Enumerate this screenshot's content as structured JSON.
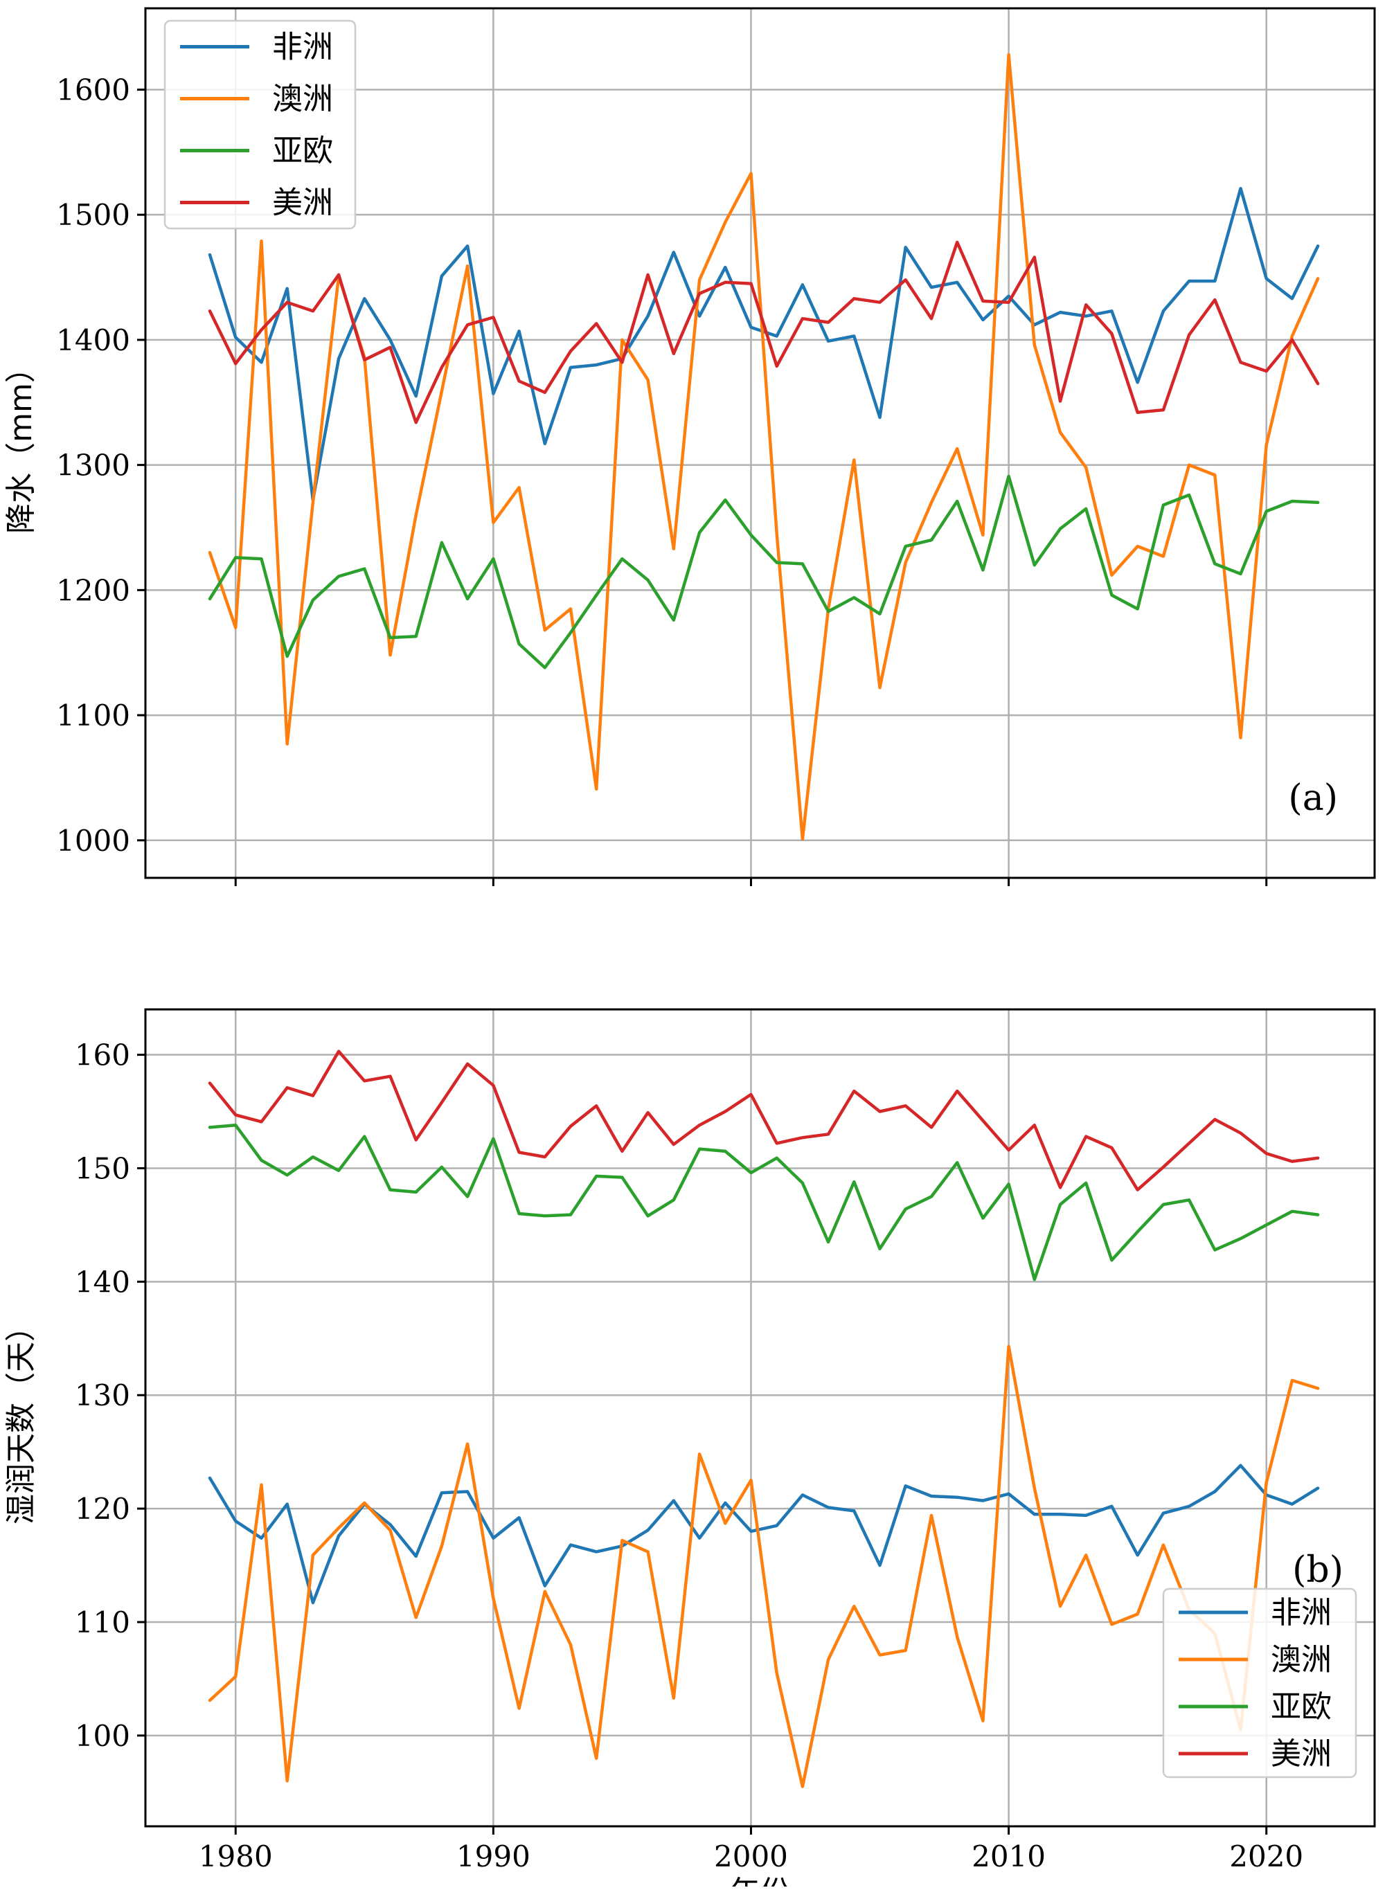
{
  "chart_data": [
    {
      "type": "line",
      "panel_label": "(a)",
      "ylabel": "降水（mm）",
      "xlabel": "",
      "xlim": [
        1976.5,
        2024.2
      ],
      "ylim": [
        970,
        1665
      ],
      "xticks": [
        1980,
        1990,
        2000,
        2010,
        2020
      ],
      "yticks": [
        1000,
        1100,
        1200,
        1300,
        1400,
        1500,
        1600
      ],
      "grid": true,
      "legend_position": "top-left",
      "x": [
        1979,
        1980,
        1981,
        1982,
        1983,
        1984,
        1985,
        1986,
        1987,
        1988,
        1989,
        1990,
        1991,
        1992,
        1993,
        1994,
        1995,
        1996,
        1997,
        1998,
        1999,
        2000,
        2001,
        2002,
        2003,
        2004,
        2005,
        2006,
        2007,
        2008,
        2009,
        2010,
        2011,
        2012,
        2013,
        2014,
        2015,
        2016,
        2017,
        2018,
        2019,
        2020,
        2021,
        2022
      ],
      "series": [
        {
          "name": "非洲",
          "color": "#1f77b4",
          "values": [
            1468,
            1402,
            1382,
            1441,
            1272,
            1385,
            1433,
            1400,
            1355,
            1451,
            1475,
            1357,
            1407,
            1317,
            1378,
            1380,
            1385,
            1419,
            1470,
            1419,
            1458,
            1410,
            1403,
            1444,
            1399,
            1403,
            1338,
            1474,
            1442,
            1446,
            1416,
            1435,
            1412,
            1422,
            1419,
            1423,
            1366,
            1423,
            1447,
            1447,
            1521,
            1449,
            1433,
            1475
          ]
        },
        {
          "name": "澳洲",
          "color": "#ff7f0e",
          "values": [
            1230,
            1170,
            1479,
            1077,
            1270,
            1451,
            1386,
            1148,
            1260,
            1359,
            1459,
            1254,
            1282,
            1168,
            1185,
            1041,
            1400,
            1368,
            1233,
            1448,
            1494,
            1533,
            1245,
            1001,
            1185,
            1304,
            1122,
            1222,
            1270,
            1313,
            1244,
            1628,
            1396,
            1326,
            1298,
            1212,
            1235,
            1227,
            1300,
            1292,
            1082,
            1316,
            1403,
            1449
          ]
        },
        {
          "name": "亚欧",
          "color": "#2ca02c",
          "values": [
            1193,
            1226,
            1225,
            1147,
            1192,
            1211,
            1217,
            1162,
            1163,
            1238,
            1193,
            1225,
            1157,
            1138,
            1166,
            1196,
            1225,
            1208,
            1176,
            1246,
            1272,
            1244,
            1222,
            1221,
            1183,
            1194,
            1181,
            1235,
            1240,
            1271,
            1216,
            1291,
            1220,
            1249,
            1265,
            1196,
            1185,
            1268,
            1276,
            1221,
            1213,
            1263,
            1271,
            1270
          ]
        },
        {
          "name": "美洲",
          "color": "#d62728",
          "values": [
            1423,
            1381,
            1408,
            1430,
            1423,
            1452,
            1384,
            1394,
            1334,
            1378,
            1412,
            1418,
            1367,
            1358,
            1391,
            1413,
            1382,
            1452,
            1389,
            1437,
            1446,
            1445,
            1379,
            1417,
            1414,
            1433,
            1430,
            1448,
            1417,
            1478,
            1431,
            1430,
            1466,
            1351,
            1428,
            1405,
            1342,
            1344,
            1404,
            1432,
            1382,
            1375,
            1400,
            1365
          ]
        }
      ]
    },
    {
      "type": "line",
      "panel_label": "(b)",
      "ylabel": "湿润天数（天）",
      "xlabel": "年份",
      "xlim": [
        1976.5,
        2024.2
      ],
      "ylim": [
        92,
        164
      ],
      "xticks": [
        1980,
        1990,
        2000,
        2010,
        2020
      ],
      "yticks": [
        100,
        110,
        120,
        130,
        140,
        150,
        160
      ],
      "grid": true,
      "legend_position": "bottom-right",
      "x": [
        1979,
        1980,
        1981,
        1982,
        1983,
        1984,
        1985,
        1986,
        1987,
        1988,
        1989,
        1990,
        1991,
        1992,
        1993,
        1994,
        1995,
        1996,
        1997,
        1998,
        1999,
        2000,
        2001,
        2002,
        2003,
        2004,
        2005,
        2006,
        2007,
        2008,
        2009,
        2010,
        2011,
        2012,
        2013,
        2014,
        2015,
        2016,
        2017,
        2018,
        2019,
        2020,
        2021,
        2022
      ],
      "series": [
        {
          "name": "非洲",
          "color": "#1f77b4",
          "values": [
            122.7,
            118.9,
            117.4,
            120.4,
            111.7,
            117.6,
            120.4,
            118.6,
            115.8,
            121.4,
            121.5,
            117.4,
            119.2,
            113.2,
            116.8,
            116.2,
            116.7,
            118.1,
            120.7,
            117.4,
            120.5,
            118.0,
            118.5,
            121.2,
            120.1,
            119.8,
            115.0,
            122.0,
            121.1,
            121.0,
            120.7,
            121.3,
            119.5,
            119.5,
            119.4,
            120.2,
            115.9,
            119.6,
            120.2,
            121.5,
            123.8,
            121.2,
            120.4,
            121.8
          ]
        },
        {
          "name": "澳洲",
          "color": "#ff7f0e",
          "values": [
            103.1,
            105.2,
            122.1,
            96.0,
            115.9,
            118.3,
            120.5,
            118.1,
            110.4,
            116.7,
            125.7,
            112.1,
            102.4,
            112.7,
            108.0,
            98.0,
            117.2,
            116.2,
            103.3,
            124.8,
            118.7,
            122.5,
            105.5,
            95.5,
            106.7,
            111.4,
            107.1,
            107.5,
            119.4,
            108.7,
            101.3,
            134.3,
            121.8,
            111.4,
            115.9,
            109.8,
            110.7,
            116.8,
            111.1,
            109.0,
            100.5,
            122.3,
            131.3,
            130.6
          ]
        },
        {
          "name": "亚欧",
          "color": "#2ca02c",
          "values": [
            153.6,
            153.8,
            150.7,
            149.4,
            151.0,
            149.8,
            152.8,
            148.1,
            147.9,
            150.1,
            147.5,
            152.6,
            146.0,
            145.8,
            145.9,
            149.3,
            149.2,
            145.8,
            147.2,
            151.7,
            151.5,
            149.6,
            150.9,
            148.7,
            143.5,
            148.8,
            142.9,
            146.4,
            147.5,
            150.5,
            145.6,
            148.6,
            140.2,
            146.8,
            148.7,
            141.9,
            144.4,
            146.8,
            147.2,
            142.8,
            143.8,
            145.0,
            146.2,
            145.9
          ]
        },
        {
          "name": "美洲",
          "color": "#d62728",
          "values": [
            157.5,
            154.7,
            154.1,
            157.1,
            156.4,
            160.3,
            157.7,
            158.1,
            152.5,
            155.8,
            159.2,
            157.3,
            151.4,
            151.0,
            153.7,
            155.5,
            151.5,
            154.9,
            152.1,
            153.8,
            155.0,
            156.5,
            152.2,
            152.7,
            153.0,
            156.8,
            155.0,
            155.5,
            153.6,
            156.8,
            154.2,
            151.6,
            153.8,
            148.3,
            152.8,
            151.8,
            148.1,
            150.1,
            152.2,
            154.3,
            153.1,
            151.3,
            150.6,
            150.9
          ]
        }
      ]
    }
  ]
}
